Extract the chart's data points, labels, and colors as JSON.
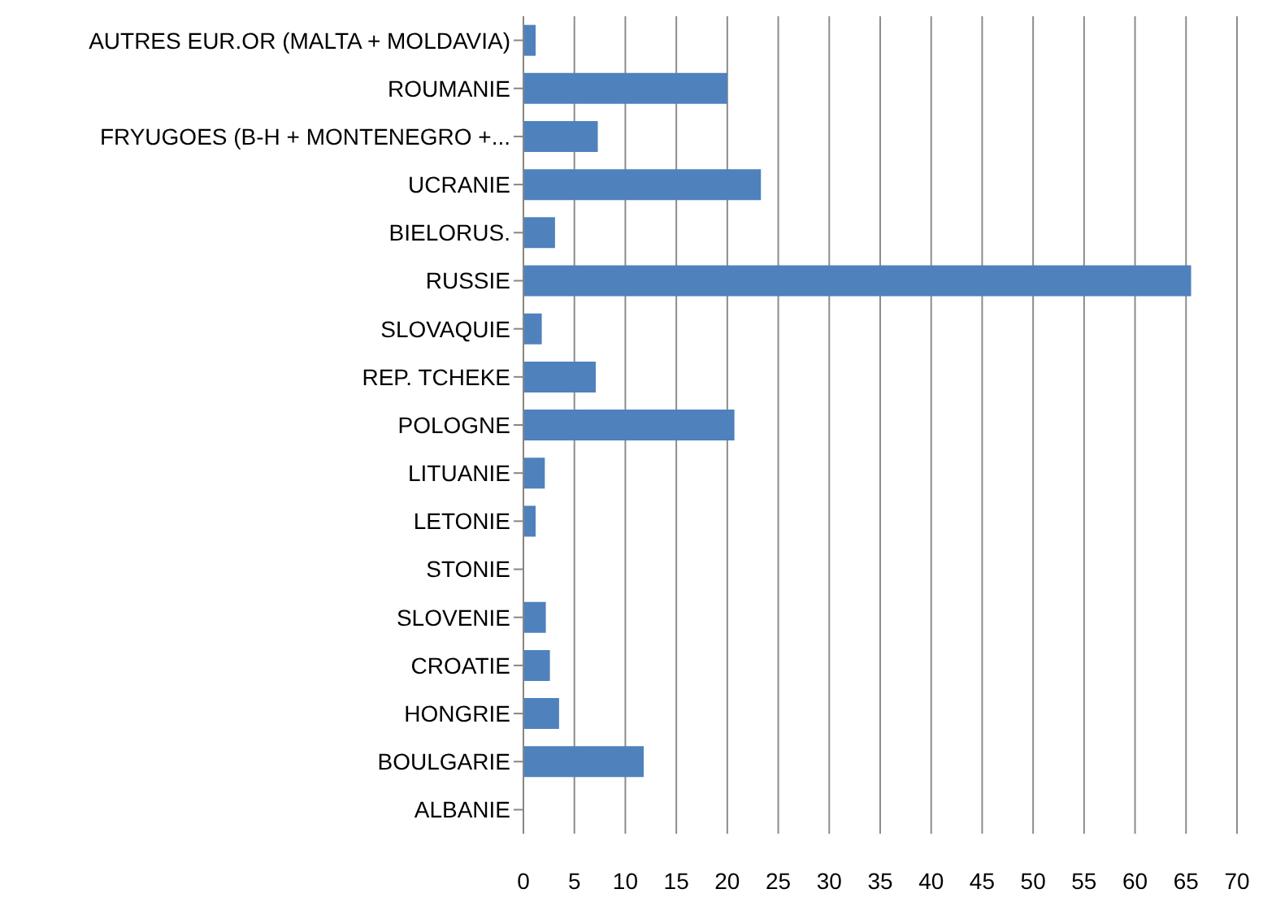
{
  "chart_data": {
    "type": "bar",
    "orientation": "horizontal",
    "categories": [
      "AUTRES EUR.OR (MALTA + MOLDAVIA)",
      "ROUMANIE",
      "FRYUGOES (B-H + MONTENEGRO +...",
      "UCRANIE",
      "BIELORUS.",
      "RUSSIE",
      "SLOVAQUIE",
      "REP. TCHEKE",
      "POLOGNE",
      "LITUANIE",
      "LETONIE",
      "STONIE",
      "SLOVENIE",
      "CROATIE",
      "HONGRIE",
      "BOULGARIE",
      "ALBANIE"
    ],
    "values": [
      1.2,
      20,
      7.3,
      23.3,
      3.1,
      65.5,
      1.8,
      7.1,
      20.7,
      2.1,
      1.2,
      0,
      2.2,
      2.6,
      3.5,
      11.8,
      0
    ],
    "color": "#4f81bd",
    "xlim": [
      0,
      70
    ],
    "xticks": [
      0,
      5,
      10,
      15,
      20,
      25,
      30,
      35,
      40,
      45,
      50,
      55,
      60,
      65,
      70
    ],
    "grid": "x"
  }
}
